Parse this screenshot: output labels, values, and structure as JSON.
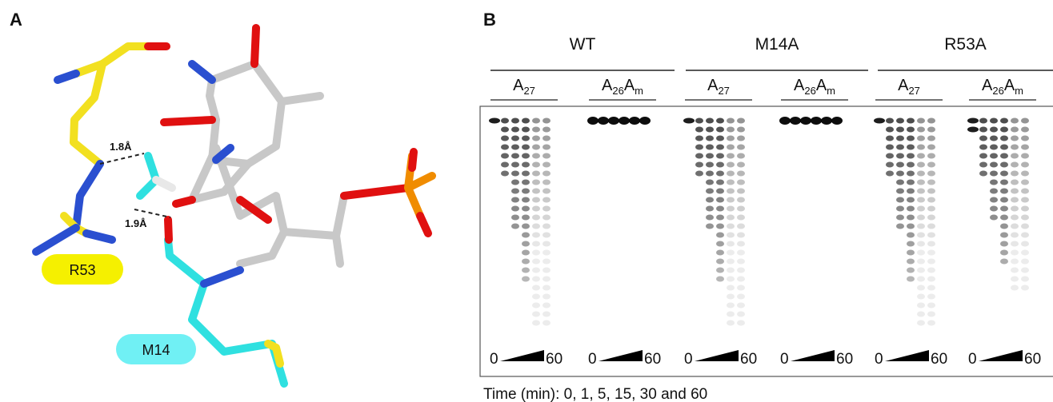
{
  "panel_a": {
    "label": "A",
    "distances": [
      "1.8Å",
      "1.9Å"
    ],
    "residues": [
      "R53",
      "M14"
    ]
  },
  "panel_b": {
    "label": "B",
    "groups": [
      {
        "name": "WT",
        "lanes": [
          {
            "label": [
              {
                "text": "A"
              },
              {
                "text": "27",
                "sub": true
              }
            ],
            "ramp": [
              0,
              60
            ]
          },
          {
            "label": [
              {
                "text": "A"
              },
              {
                "text": "26",
                "sub": true
              },
              {
                "text": "A"
              },
              {
                "text": "m",
                "sub": true
              }
            ],
            "ramp": [
              0,
              60
            ]
          }
        ]
      },
      {
        "name": "M14A",
        "lanes": [
          {
            "label": [
              {
                "text": "A"
              },
              {
                "text": "27",
                "sub": true
              }
            ],
            "ramp": [
              0,
              60
            ]
          },
          {
            "label": [
              {
                "text": "A"
              },
              {
                "text": "26",
                "sub": true
              },
              {
                "text": "A"
              },
              {
                "text": "m",
                "sub": true
              }
            ],
            "ramp": [
              0,
              60
            ]
          }
        ]
      },
      {
        "name": "R53A",
        "lanes": [
          {
            "label": [
              {
                "text": "A"
              },
              {
                "text": "27",
                "sub": true
              }
            ],
            "ramp": [
              0,
              60
            ]
          },
          {
            "label": [
              {
                "text": "A"
              },
              {
                "text": "26",
                "sub": true
              },
              {
                "text": "A"
              },
              {
                "text": "m",
                "sub": true
              }
            ],
            "ramp": [
              0,
              60
            ]
          }
        ]
      }
    ],
    "caption": "Time (min): 0, 1, 5, 15, 30 and 60"
  }
}
